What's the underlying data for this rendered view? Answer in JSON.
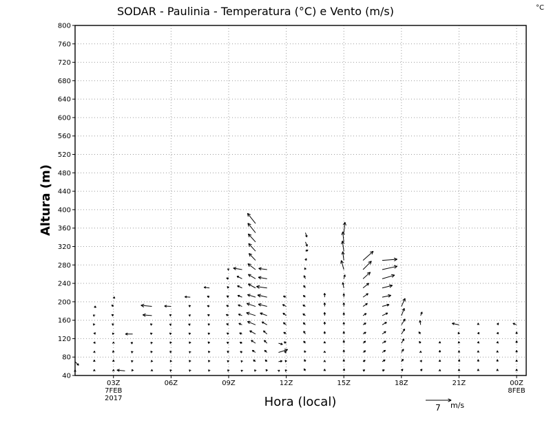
{
  "chart_data": {
    "type": "vector-field",
    "title": "SODAR - Paulinia - Temperatura (°C) e Vento (m/s)",
    "corner_label": "°C",
    "xlabel": "Hora (local)",
    "ylabel": "Altura (m)",
    "xlim": [
      0,
      23.5
    ],
    "ylim": [
      40,
      800
    ],
    "grid": true,
    "yticks": [
      40,
      80,
      120,
      160,
      200,
      240,
      280,
      320,
      360,
      400,
      440,
      480,
      520,
      560,
      600,
      640,
      680,
      720,
      760,
      800
    ],
    "ytick_labels": [
      "40",
      "80",
      "120",
      "160",
      "200",
      "240",
      "280",
      "320",
      "360",
      "400",
      "440",
      "480",
      "520",
      "560",
      "600",
      "640",
      "680",
      "720",
      "760",
      "800"
    ],
    "xticks": [
      {
        "x": 2,
        "label": "03Z",
        "sub1": "7FEB",
        "sub2": "2017"
      },
      {
        "x": 5,
        "label": "06Z",
        "sub1": "",
        "sub2": ""
      },
      {
        "x": 8,
        "label": "09Z",
        "sub1": "",
        "sub2": ""
      },
      {
        "x": 11,
        "label": "12Z",
        "sub1": "",
        "sub2": ""
      },
      {
        "x": 14,
        "label": "15Z",
        "sub1": "",
        "sub2": ""
      },
      {
        "x": 17,
        "label": "18Z",
        "sub1": "",
        "sub2": ""
      },
      {
        "x": 20,
        "label": "21Z",
        "sub1": "",
        "sub2": ""
      },
      {
        "x": 23,
        "label": "00Z",
        "sub1": "8FEB",
        "sub2": ""
      }
    ],
    "reference_vector": {
      "speed": 7,
      "label": "7",
      "unit": "m/s"
    },
    "heights": [
      50,
      70,
      90,
      110,
      130,
      150,
      170,
      190,
      210,
      230,
      250,
      270,
      290,
      310,
      330,
      350,
      370
    ],
    "columns": [
      {
        "x": 0.0,
        "wind": [
          [
            0,
            0.3
          ],
          [
            1,
            -1
          ]
        ]
      },
      {
        "x": 1.0,
        "wind": [
          [
            0,
            0.4
          ],
          [
            0,
            0.5
          ],
          [
            0.1,
            0.4
          ],
          [
            0.2,
            0.4
          ],
          [
            0.3,
            0.4
          ],
          [
            -0.3,
            0.3
          ],
          [
            -0.3,
            0.2
          ],
          [
            0.5,
            -0.3
          ]
        ]
      },
      {
        "x": 2.0,
        "wind": [
          [
            0,
            0.4
          ],
          [
            0,
            0.5
          ],
          [
            -0.1,
            0.5
          ],
          [
            0,
            0.4
          ],
          [
            -0.3,
            0.3
          ],
          [
            -0.4,
            0.3
          ],
          [
            -0.5,
            0.3
          ],
          [
            -0.5,
            0.4
          ],
          [
            0.4,
            -0.3
          ]
        ]
      },
      {
        "x": 2.6,
        "wind": [
          [
            -2.2,
            0.2
          ]
        ]
      },
      {
        "x": 3.0,
        "wind": [
          [
            -0.2,
            0.4
          ],
          [
            -0.4,
            0.3
          ],
          [
            -0.4,
            0.3
          ],
          [
            -0.5,
            0.2
          ],
          [
            -2.0,
            0
          ]
        ]
      },
      {
        "x": 4.0,
        "wind": [
          [
            0,
            0.4
          ],
          [
            -0.1,
            0.4
          ],
          [
            -0.3,
            0.4
          ],
          [
            -0.3,
            0.3
          ],
          [
            -0.4,
            0.3
          ],
          [
            -0.4,
            0.3
          ],
          [
            -2.5,
            0.2
          ],
          [
            -3.0,
            0.3
          ]
        ]
      },
      {
        "x": 5.0,
        "wind": [
          [
            -0.3,
            0.3
          ],
          [
            -0.2,
            0.4
          ],
          [
            -0.3,
            0.4
          ],
          [
            -0.3,
            0.4
          ],
          [
            -0.4,
            0.3
          ],
          [
            -0.4,
            0.2
          ],
          [
            -0.4,
            0.3
          ],
          [
            -1.8,
            0.1
          ]
        ]
      },
      {
        "x": 6.0,
        "wind": [
          [
            -0.3,
            0.3
          ],
          [
            -0.3,
            0.4
          ],
          [
            -0.3,
            0.3
          ],
          [
            -0.3,
            0.4
          ],
          [
            -0.4,
            0.3
          ],
          [
            -0.5,
            0.2
          ],
          [
            -0.4,
            0.2
          ],
          [
            -0.4,
            0.3
          ],
          [
            -1.5,
            0.1
          ]
        ]
      },
      {
        "x": 7.0,
        "wind": [
          [
            -0.3,
            0.3
          ],
          [
            -0.3,
            0.4
          ],
          [
            -0.3,
            0.4
          ],
          [
            -0.4,
            0.4
          ],
          [
            -0.4,
            0.3
          ],
          [
            -0.4,
            0.3
          ],
          [
            -0.5,
            0.3
          ],
          [
            -0.6,
            0.2
          ],
          [
            -0.6,
            0.3
          ],
          [
            -1.5,
            0.2
          ]
        ]
      },
      {
        "x": 8.0,
        "wind": [
          [
            -0.3,
            0.3
          ],
          [
            -0.4,
            0.3
          ],
          [
            -0.4,
            0.4
          ],
          [
            -0.5,
            0.3
          ],
          [
            -0.5,
            0.3
          ],
          [
            -0.6,
            0.3
          ],
          [
            -0.7,
            0.3
          ],
          [
            -0.6,
            0.3
          ],
          [
            -0.5,
            0.4
          ],
          [
            -0.4,
            0.4
          ],
          [
            -0.6,
            0.2
          ],
          [
            -0.3,
            0.2
          ]
        ]
      },
      {
        "x": 8.7,
        "wind": [
          [
            -0.3,
            0.2
          ],
          [
            -0.3,
            0.3
          ],
          [
            -0.5,
            0.3
          ],
          [
            -0.6,
            0.3
          ],
          [
            -0.7,
            0.3
          ],
          [
            -0.9,
            0.4
          ],
          [
            -1.0,
            0.4
          ],
          [
            -1.1,
            0.4
          ],
          [
            -1.2,
            0.5
          ],
          [
            -1.3,
            0.6
          ],
          [
            -1.4,
            0.7
          ],
          [
            -2.4,
            0.4
          ]
        ]
      },
      {
        "x": 9.4,
        "wind": [
          [
            -0.3,
            0.3
          ],
          [
            -0.6,
            0.5
          ],
          [
            -0.9,
            0.6
          ],
          [
            -1.2,
            0.8
          ],
          [
            -1.6,
            0.9
          ],
          [
            -2.2,
            0.9
          ],
          [
            -2.5,
            0.8
          ],
          [
            -2.4,
            0.8
          ],
          [
            -2.2,
            0.7
          ],
          [
            -2.0,
            1.1
          ],
          [
            -2.0,
            1.2
          ],
          [
            -2.1,
            1.6
          ],
          [
            -1.8,
            1.9
          ],
          [
            -1.9,
            2.1
          ],
          [
            -2.0,
            2.2
          ],
          [
            -2.1,
            2.6
          ],
          [
            -2.2,
            2.8
          ]
        ]
      },
      {
        "x": 10.0,
        "wind": [
          [
            -0.3,
            0.4
          ],
          [
            -0.5,
            0.5
          ],
          [
            -0.7,
            0.6
          ],
          [
            -0.8,
            0.8
          ],
          [
            -1.0,
            0.9
          ],
          [
            -1.4,
            0.8
          ],
          [
            -1.9,
            0.7
          ],
          [
            -2.4,
            0.6
          ],
          [
            -2.6,
            0.6
          ],
          [
            -2.9,
            0.4
          ],
          [
            -2.4,
            0.4
          ],
          [
            -2.3,
            0.3
          ]
        ]
      },
      {
        "x": 10.6,
        "wind": [
          [
            0.3,
            0.2
          ],
          [
            1.0,
            0.2
          ],
          [
            2.5,
            0.8
          ],
          [
            1.1,
            -0.3
          ]
        ]
      },
      {
        "x": 11.0,
        "wind": [
          [
            -0.3,
            0.3
          ],
          [
            -0.3,
            0.4
          ],
          [
            -0.5,
            0.3
          ],
          [
            -0.6,
            0.4
          ],
          [
            -0.7,
            0.5
          ],
          [
            -0.8,
            0.6
          ],
          [
            -0.9,
            0.7
          ],
          [
            -1.0,
            0.5
          ],
          [
            -0.8,
            0.3
          ]
        ]
      },
      {
        "x": 12.0,
        "wind": [
          [
            -0.4,
            0.6
          ],
          [
            -0.3,
            0.6
          ],
          [
            -0.3,
            0.5
          ],
          [
            -0.5,
            0.6
          ],
          [
            -0.5,
            0.8
          ],
          [
            -0.6,
            0.6
          ],
          [
            -0.7,
            0.5
          ],
          [
            -0.7,
            0.4
          ],
          [
            -0.6,
            0.5
          ],
          [
            -0.5,
            0.7
          ],
          [
            -0.4,
            0.9
          ],
          [
            -0.2,
            0.5
          ],
          [
            0.3,
            0.5
          ],
          [
            0.7,
            0.3
          ],
          [
            0.5,
            -1.2
          ],
          [
            0.4,
            -1.2
          ]
        ]
      },
      {
        "x": 13.0,
        "wind": [
          [
            0,
            0.5
          ],
          [
            0,
            0.4
          ],
          [
            0,
            0.4
          ],
          [
            0,
            0.5
          ],
          [
            0,
            0.7
          ],
          [
            0,
            0.8
          ],
          [
            0,
            0.9
          ],
          [
            0,
            1.0
          ],
          [
            0,
            1.1
          ]
        ]
      },
      {
        "x": 14.0,
        "wind": [
          [
            0.1,
            0.6
          ],
          [
            0,
            0.6
          ],
          [
            0,
            0.7
          ],
          [
            0,
            0.8
          ],
          [
            0,
            0.7
          ],
          [
            0,
            0.7
          ],
          [
            0,
            0.8
          ],
          [
            0,
            1.0
          ],
          [
            0,
            1.0
          ],
          [
            -0.3,
            1.5
          ],
          [
            0.3,
            1.1
          ],
          [
            -0.7,
            2.5
          ],
          [
            -0.3,
            2.4
          ],
          [
            -0.4,
            2.8
          ],
          [
            -0.3,
            2.8
          ],
          [
            0.3,
            2.9
          ]
        ]
      },
      {
        "x": 15.0,
        "wind": [
          [
            0.5,
            0.3
          ],
          [
            0.6,
            0.4
          ],
          [
            0.7,
            0.5
          ],
          [
            0.7,
            0.6
          ],
          [
            0.8,
            0.5
          ],
          [
            0.8,
            0.5
          ],
          [
            0.9,
            0.6
          ],
          [
            1.2,
            0.8
          ],
          [
            1.4,
            1.0
          ],
          [
            1.6,
            1.3
          ],
          [
            2.0,
            1.8
          ],
          [
            2.3,
            2.3
          ],
          [
            2.8,
            2.5
          ]
        ]
      },
      {
        "x": 16.0,
        "wind": [
          [
            0.6,
            0.3
          ],
          [
            0.8,
            0.5
          ],
          [
            0.9,
            0.6
          ],
          [
            1.0,
            0.6
          ],
          [
            1.0,
            0.7
          ],
          [
            1.2,
            0.7
          ],
          [
            1.5,
            0.7
          ],
          [
            1.9,
            0.5
          ],
          [
            2.4,
            0.5
          ],
          [
            2.8,
            0.7
          ],
          [
            3.4,
            1.0
          ],
          [
            4.1,
            0.9
          ],
          [
            4.1,
            0.3
          ]
        ]
      },
      {
        "x": 17.0,
        "wind": [
          [
            0.4,
            0.5
          ],
          [
            0.5,
            0.7
          ],
          [
            0.6,
            0.9
          ],
          [
            0.7,
            1.2
          ],
          [
            0.9,
            1.4
          ],
          [
            1.0,
            1.6
          ],
          [
            0.8,
            2.0
          ],
          [
            1.0,
            2.2
          ]
        ]
      },
      {
        "x": 18.0,
        "wind": [
          [
            0.4,
            0.5
          ],
          [
            0.3,
            0.4
          ],
          [
            0,
            0.4
          ],
          [
            -0.4,
            0.5
          ],
          [
            -0.5,
            0.6
          ],
          [
            -0.2,
            1.2
          ],
          [
            0.4,
            1.0
          ]
        ]
      },
      {
        "x": 19.0,
        "wind": [
          [
            0,
            0.4
          ],
          [
            0,
            0.5
          ],
          [
            0,
            0.6
          ],
          [
            0,
            0.5
          ]
        ]
      },
      {
        "x": 20.0,
        "wind": [
          [
            0,
            0.5
          ],
          [
            0.1,
            0.6
          ],
          [
            0,
            0.5
          ],
          [
            -0.1,
            0.5
          ],
          [
            -0.2,
            0.5
          ],
          [
            -1.9,
            0.4
          ]
        ]
      },
      {
        "x": 21.0,
        "wind": [
          [
            0,
            0.5
          ],
          [
            0,
            0.6
          ],
          [
            0,
            0.5
          ],
          [
            0.1,
            0.5
          ],
          [
            0.2,
            0.5
          ],
          [
            0,
            0.5
          ]
        ]
      },
      {
        "x": 22.0,
        "wind": [
          [
            0,
            0.5
          ],
          [
            0,
            0.6
          ],
          [
            0,
            0.5
          ],
          [
            0.1,
            0.5
          ],
          [
            0.2,
            0.5
          ],
          [
            0.3,
            0.5
          ]
        ]
      },
      {
        "x": 23.0,
        "wind": [
          [
            0,
            0.5
          ],
          [
            0,
            0.5
          ],
          [
            0,
            0.6
          ],
          [
            0,
            0.7
          ],
          [
            0,
            0.6
          ],
          [
            -1.0,
            0.4
          ]
        ]
      }
    ]
  }
}
